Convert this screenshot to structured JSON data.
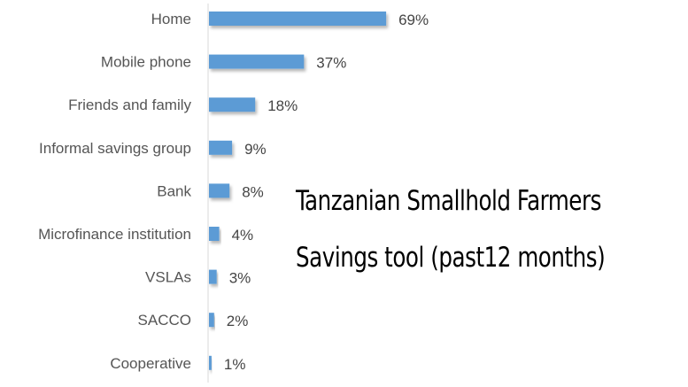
{
  "chart_data": {
    "type": "bar",
    "orientation": "horizontal",
    "title_lines": [
      "Tanzanian Smallhold Farmers",
      "Savings tool (past12 months)"
    ],
    "categories": [
      "Home",
      "Mobile phone",
      "Friends and family",
      "Informal savings group",
      "Bank",
      "Microfinance institution",
      "VSLAs",
      "SACCO",
      "Cooperative"
    ],
    "values": [
      69,
      37,
      18,
      9,
      8,
      4,
      3,
      2,
      1
    ],
    "value_labels": [
      "69%",
      "37%",
      "18%",
      "9%",
      "8%",
      "4%",
      "3%",
      "2%",
      "1%"
    ],
    "unit": "%",
    "xlim": [
      0,
      100
    ],
    "grid": false,
    "legend": "none",
    "bar_color": "#5b9bd5",
    "axis_color": "#d9d9d9"
  }
}
